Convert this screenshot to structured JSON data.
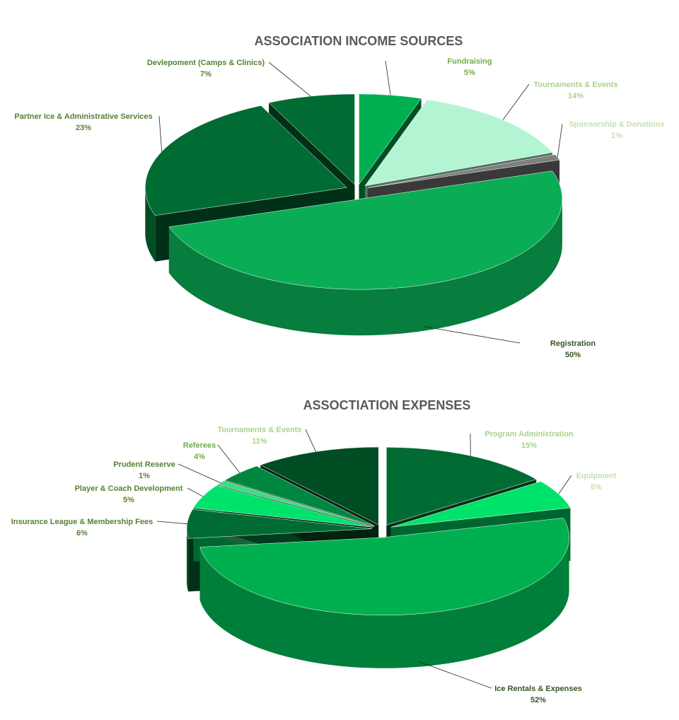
{
  "chart_data": [
    {
      "type": "pie",
      "title": "ASSOCIATION INCOME SOURCES",
      "categories": [
        "Fundraising",
        "Tournaments & Events",
        "Sponsorship & Donations",
        "Registration",
        "Partner Ice & Administrative Services",
        "Devlepoment (Camps & Clinics)"
      ],
      "values": [
        5,
        14,
        1,
        50,
        23,
        7
      ],
      "value_labels": [
        "5%",
        "14%",
        "1%",
        "50%",
        "23%",
        "7%"
      ],
      "colors": [
        "#00b050",
        "#b3f5d3",
        "#7f7f7f",
        "#0aad56",
        "#006b32",
        "#006b32"
      ],
      "label_colors": [
        "#70ad47",
        "#a9d18e",
        "#c5e0b4",
        "#375623",
        "#548235",
        "#548235"
      ]
    },
    {
      "type": "pie",
      "title": "ASSOCTIATION EXPENSES",
      "categories": [
        "Program Administration",
        "Equipment",
        "Ice Rentals & Expenses",
        "Insurance League & Membership Fees",
        "Player & Coach Development",
        "Prudent Reserve",
        "Referees",
        "Tournaments & Events"
      ],
      "values": [
        15,
        6,
        52,
        6,
        5,
        1,
        4,
        11
      ],
      "value_labels": [
        "15%",
        "6%",
        "52%",
        "6%",
        "5%",
        "1%",
        "4%",
        "11%"
      ],
      "colors": [
        "#006b32",
        "#00e36b",
        "#00b050",
        "#006b32",
        "#00e36b",
        "#3ddc84",
        "#00873f",
        "#004d24"
      ],
      "label_colors": [
        "#a9d18e",
        "#c5e0b4",
        "#375623",
        "#548235",
        "#548235",
        "#548235",
        "#70ad47",
        "#a9d18e"
      ]
    }
  ]
}
